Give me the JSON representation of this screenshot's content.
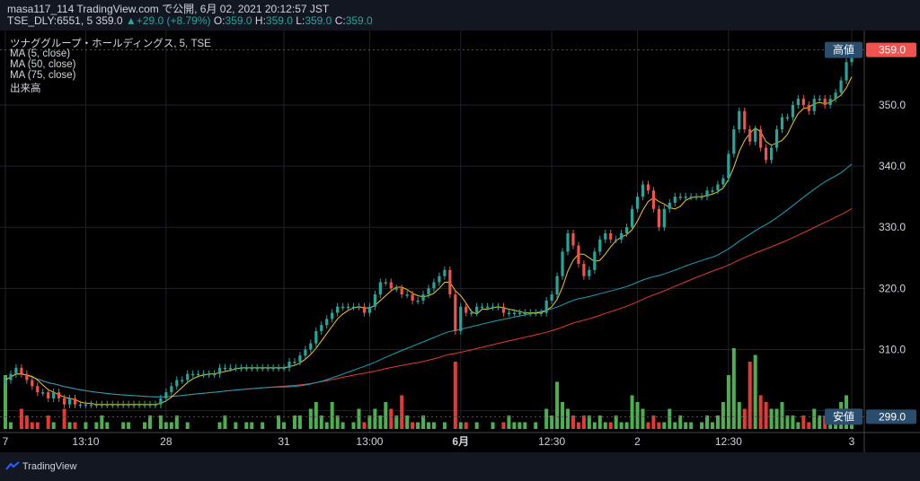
{
  "header": {
    "line1": "masa117_114 TradingView.com で公開, 6月 02, 2021 20:12:57 JST",
    "ticker": "TSE_DLY:6551, 5",
    "last": "359.0",
    "change_arrow": "▲",
    "change": "+29.0 (+8.79%)",
    "o_label": "O:",
    "o": "359.0",
    "h_label": "H:",
    "h": "359.0",
    "l_label": "L:",
    "l": "359.0",
    "c_label": "C:",
    "c": "359.0"
  },
  "legend": {
    "title": "ツナググループ・ホールディングス, 5, TSE",
    "ma5": "MA (5, close)",
    "ma50": "MA (50, close)",
    "ma75": "MA (75, close)",
    "volume": "出来高"
  },
  "price_labels": {
    "high_tag": "高値",
    "high_value": "359.0",
    "low_tag": "安値",
    "low_value": "299.0",
    "last_value": "359.0"
  },
  "brand": "TradingView",
  "colors": {
    "up": "#26a69a",
    "down": "#ef5350",
    "vol_up": "#4caf50",
    "vol_down": "#e53935",
    "ma5": "#f5c518",
    "ma50": "#17a2b8",
    "ma75": "#e53935",
    "background": "#000000",
    "header_bg": "#131722",
    "tag_bg": "#2a4d6e",
    "last_tag_bg": "#ef5350"
  },
  "chart_data": {
    "type": "candlestick",
    "title": "ツナググループ・ホールディングス, 5, TSE",
    "ylim": [
      297,
      361
    ],
    "y_ticks": [
      300,
      310,
      320,
      330,
      340,
      350
    ],
    "y_tick_labels": [
      "",
      "310.0",
      "320.0",
      "330.0",
      "340.0",
      "350.0"
    ],
    "x_tick_labels": [
      "7",
      "13:10",
      "28",
      "31",
      "13:00",
      "6月",
      "12:30",
      "2",
      "12:30",
      "3"
    ],
    "x_tick_index": [
      0,
      15,
      30,
      52,
      68,
      85,
      102,
      118,
      135,
      158
    ],
    "grid": true,
    "close": [
      305,
      306,
      307,
      306,
      305,
      304,
      303,
      303,
      302,
      303,
      302,
      301,
      302,
      301,
      301,
      301,
      301,
      301,
      301,
      301,
      301,
      301,
      301,
      301,
      301,
      301,
      301,
      301,
      301,
      302,
      303,
      304,
      305,
      305,
      306,
      306,
      306,
      306,
      306,
      306,
      307,
      307,
      307,
      307,
      307,
      307,
      307,
      307,
      307,
      307,
      307,
      307,
      307,
      308,
      308,
      309,
      310,
      311,
      313,
      314,
      315,
      316,
      317,
      317,
      317,
      317,
      317,
      316,
      317,
      319,
      321,
      321,
      320,
      320,
      319,
      319,
      318,
      318,
      319,
      320,
      321,
      322,
      323,
      319,
      313,
      317,
      316,
      316,
      317,
      317,
      317,
      317,
      317,
      316,
      316,
      316,
      316,
      316,
      316,
      316,
      316,
      318,
      319,
      322,
      326,
      329,
      327,
      324,
      322,
      323,
      326,
      328,
      329,
      328,
      328,
      329,
      330,
      333,
      335,
      337,
      336,
      333,
      330,
      333,
      334,
      335,
      335,
      335,
      335,
      335,
      335,
      336,
      336,
      337,
      338,
      342,
      346,
      349,
      346,
      344,
      346,
      343,
      341,
      343,
      346,
      348,
      348,
      350,
      351,
      350,
      349,
      351,
      351,
      350,
      351,
      352,
      354,
      357,
      359
    ],
    "volume": [
      8,
      1,
      0,
      3,
      2,
      1,
      1,
      0,
      2,
      1,
      0,
      3,
      1,
      1,
      0,
      1,
      0,
      1,
      2,
      1,
      0,
      0,
      1,
      1,
      0,
      0,
      1,
      2,
      0,
      2,
      1,
      1,
      2,
      0,
      1,
      0,
      0,
      0,
      0,
      0,
      1,
      2,
      0,
      1,
      0,
      1,
      1,
      0,
      1,
      0,
      0,
      2,
      1,
      0,
      2,
      2,
      0,
      3,
      4,
      2,
      1,
      4,
      2,
      1,
      0,
      1,
      3,
      1,
      2,
      3,
      2,
      4,
      3,
      2,
      5,
      2,
      1,
      1,
      2,
      1,
      1,
      0,
      1,
      0,
      10,
      1,
      1,
      0,
      1,
      0,
      0,
      1,
      0,
      1,
      2,
      1,
      1,
      1,
      0,
      1,
      0,
      3,
      2,
      7,
      4,
      3,
      2,
      1,
      2,
      2,
      1,
      2,
      1,
      1,
      2,
      1,
      1,
      5,
      4,
      3,
      1,
      2,
      1,
      1,
      3,
      1,
      2,
      1,
      1,
      0,
      1,
      2,
      1,
      2,
      4,
      8,
      12,
      4,
      3,
      10,
      11,
      5,
      4,
      3,
      3,
      4,
      2,
      2,
      1,
      2,
      1,
      3,
      2,
      2,
      1,
      2,
      4,
      5,
      2
    ]
  }
}
